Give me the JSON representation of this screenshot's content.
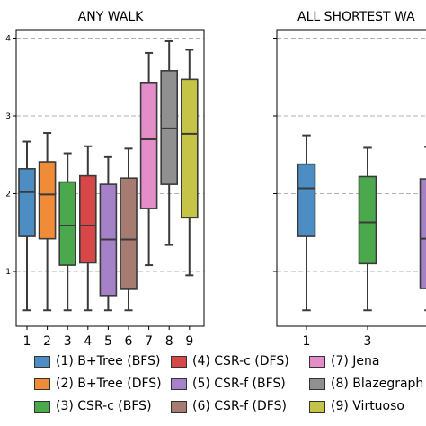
{
  "chart_data": [
    {
      "type": "box",
      "title": "ANY WALK",
      "y_ticks": [
        "4",
        "3",
        "2",
        "1"
      ],
      "x_ticks": [
        "1",
        "2",
        "3",
        "4",
        "5",
        "6",
        "7",
        "8",
        "9"
      ],
      "ylim": [
        0.5,
        4.2
      ],
      "grid": "horizontal dashed",
      "boxes": [
        {
          "x": "1",
          "min": 0.5,
          "q1": 1.45,
          "median": 2.02,
          "q3": 2.32,
          "max": 2.67
        },
        {
          "x": "2",
          "min": 0.5,
          "q1": 1.42,
          "median": 1.99,
          "q3": 2.41,
          "max": 2.78
        },
        {
          "x": "3",
          "min": 0.5,
          "q1": 1.08,
          "median": 1.59,
          "q3": 2.15,
          "max": 2.52
        },
        {
          "x": "4",
          "min": 0.5,
          "q1": 1.11,
          "median": 1.59,
          "q3": 2.23,
          "max": 2.61
        },
        {
          "x": "5",
          "min": 0.5,
          "q1": 0.69,
          "median": 1.41,
          "q3": 2.12,
          "max": 2.47
        },
        {
          "x": "6",
          "min": 0.5,
          "q1": 0.77,
          "median": 1.41,
          "q3": 2.2,
          "max": 2.58
        },
        {
          "x": "7",
          "min": 1.08,
          "q1": 1.81,
          "median": 2.7,
          "q3": 3.43,
          "max": 3.81
        },
        {
          "x": "8",
          "min": 1.34,
          "q1": 2.12,
          "median": 2.84,
          "q3": 3.58,
          "max": 3.96
        },
        {
          "x": "9",
          "min": 0.95,
          "q1": 1.69,
          "median": 2.77,
          "q3": 3.47,
          "max": 3.85
        }
      ]
    },
    {
      "type": "box",
      "title": "ALL SHORTEST WA",
      "x_ticks": [
        "1",
        "3"
      ],
      "ylim": [
        0.5,
        4.2
      ],
      "grid": "horizontal dashed",
      "boxes": [
        {
          "x": "1",
          "min": 0.5,
          "q1": 1.45,
          "median": 2.07,
          "q3": 2.38,
          "max": 2.75
        },
        {
          "x": "3",
          "min": 0.5,
          "q1": 1.1,
          "median": 1.63,
          "q3": 2.22,
          "max": 2.59
        },
        {
          "x": "5",
          "min": 0.5,
          "q1": 0.78,
          "median": 1.42,
          "q3": 2.19,
          "max": 2.6
        }
      ]
    }
  ],
  "legend": [
    {
      "label": "(1) B+Tree (BFS)",
      "color": "#4c8ec4"
    },
    {
      "label": "(2) B+Tree (DFS)",
      "color": "#f08c37"
    },
    {
      "label": "(3) CSR-c (BFS)",
      "color": "#4ca84c"
    },
    {
      "label": "(4) CSR-c (DFS)",
      "color": "#d84747"
    },
    {
      "label": "(5) CSR-f (BFS)",
      "color": "#a581c8"
    },
    {
      "label": "(6) CSR-f (DFS)",
      "color": "#a67b72"
    },
    {
      "label": "(7) Jena",
      "color": "#e38ec8"
    },
    {
      "label": "(8) Blazegraph",
      "color": "#909090"
    },
    {
      "label": "(9) Virtuoso",
      "color": "#c6c447"
    }
  ]
}
